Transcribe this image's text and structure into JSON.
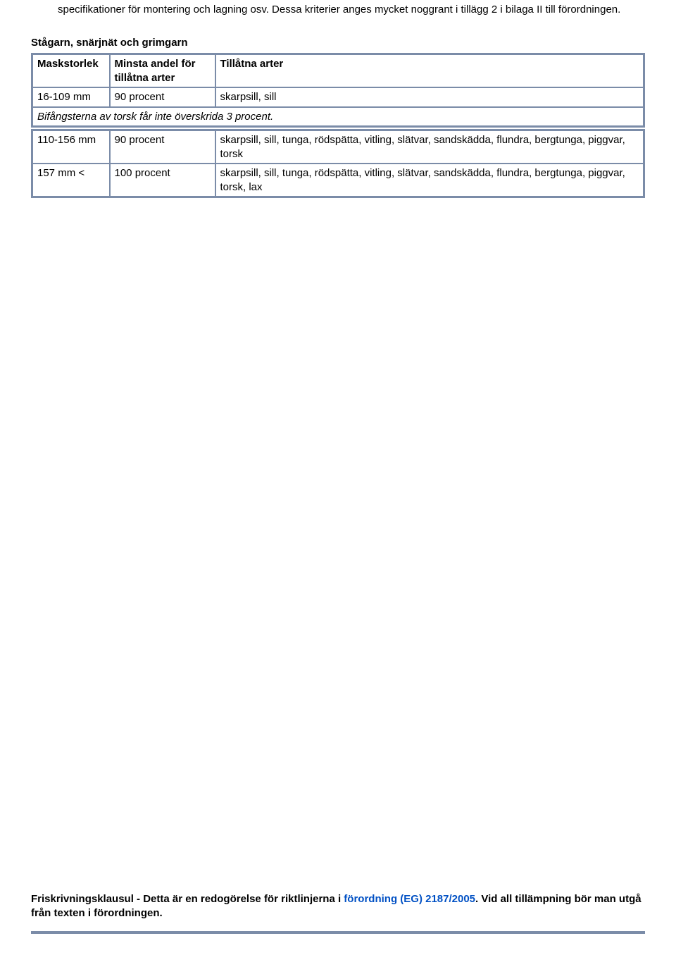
{
  "intro_text": "specifikationer för montering och lagning osv. Dessa kriterier anges mycket noggrant i tillägg 2 i bilaga II till förordningen.",
  "section_title": "Stågarn, snärjnät och grimgarn",
  "table1": {
    "header": {
      "c1": "Maskstorlek",
      "c2": "Minsta andel för tillåtna arter",
      "c3": "Tillåtna arter"
    },
    "row1": {
      "c1": "16-109 mm",
      "c2": "90 procent",
      "c3": "skarpsill, sill"
    },
    "note": "Bifångsterna av torsk får inte överskrida 3 procent."
  },
  "table2": {
    "row1": {
      "c1": "110-156 mm",
      "c2": "90 procent",
      "c3": "skarpsill, sill, tunga, rödspätta, vitling, slätvar, sandskädda, flundra, bergtunga, piggvar, torsk"
    },
    "row2": {
      "c1": "157 mm <",
      "c2": "100 procent",
      "c3": "skarpsill, sill, tunga, rödspätta, vitling, slätvar, sandskädda, flundra, bergtunga, piggvar, torsk, lax"
    }
  },
  "disclaimer": {
    "pre": "Friskrivningsklausul - Detta är en redogörelse för riktlinjerna i ",
    "link": "förordning (EG) 2187/2005",
    "post": ". Vid all tillämpning bör man utgå från texten i förordningen."
  },
  "colors": {
    "border": "#7b8ca8",
    "link": "#0050c4",
    "text": "#000000",
    "bg": "#ffffff"
  }
}
